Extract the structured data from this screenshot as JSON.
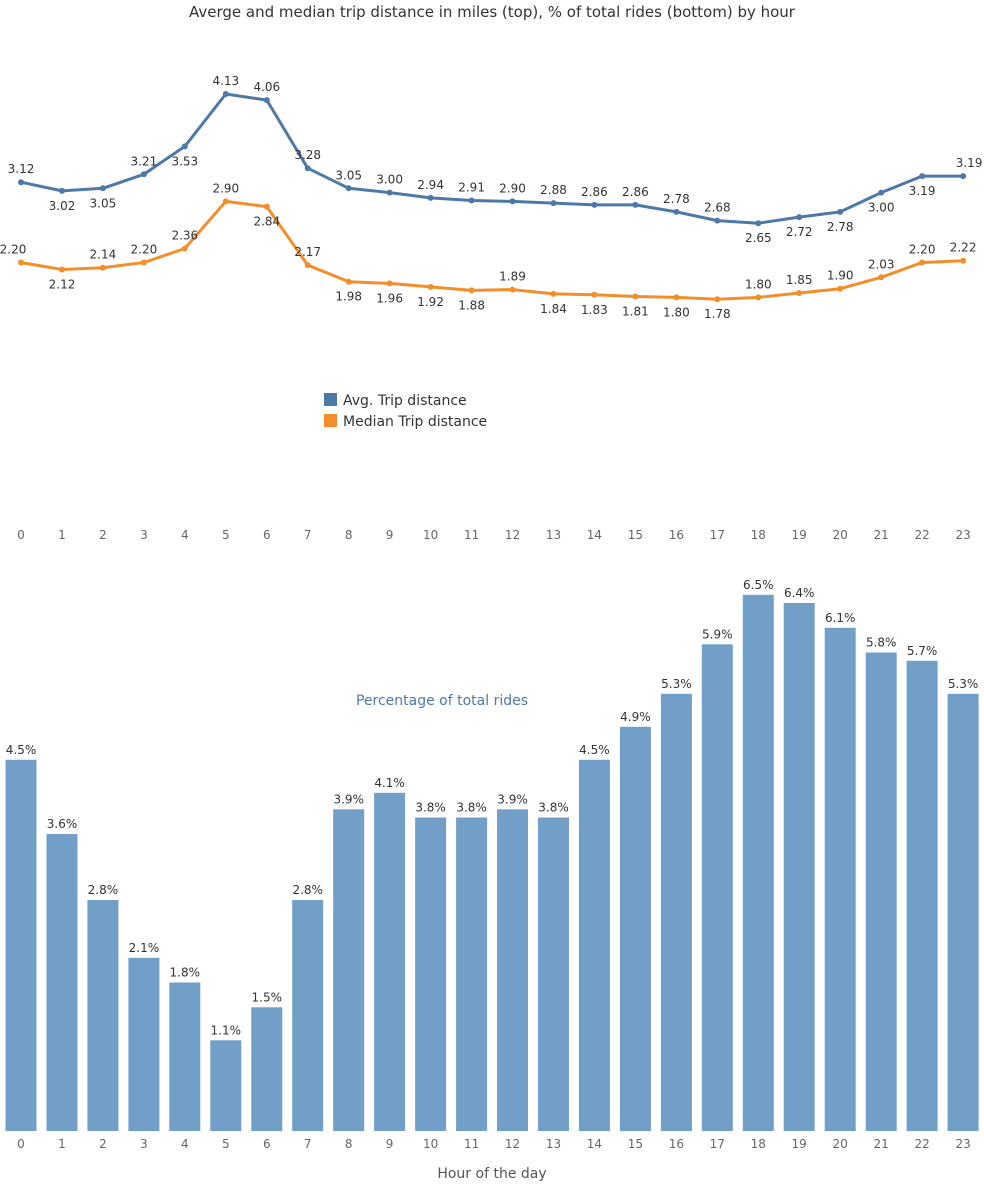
{
  "title": "Averge and median trip distance in miles  (top), % of total rides (bottom) by hour",
  "colors": {
    "avg": "#4e79a7",
    "median": "#f28e2b",
    "bar": "#729fc8"
  },
  "chart_data": [
    {
      "type": "line",
      "x": [
        0,
        1,
        2,
        3,
        4,
        5,
        6,
        7,
        8,
        9,
        10,
        11,
        12,
        13,
        14,
        15,
        16,
        17,
        18,
        19,
        20,
        21,
        22,
        23
      ],
      "series": [
        {
          "name": "Avg. Trip distance",
          "values": [
            3.12,
            3.02,
            3.05,
            3.21,
            3.53,
            4.13,
            4.06,
            3.28,
            3.05,
            3.0,
            2.94,
            2.91,
            2.9,
            2.88,
            2.86,
            2.86,
            2.78,
            2.68,
            2.65,
            2.72,
            2.78,
            3.0,
            3.19,
            3.19
          ],
          "labels": [
            "3.12",
            "3.02",
            "3.05",
            "3.21",
            "3.53",
            "4.13",
            "4.06",
            "3.28",
            "3.05",
            "3.00",
            "2.94",
            "2.91",
            "2.90",
            "2.88",
            "2.86",
            "2.86",
            "2.78",
            "2.68",
            "2.65",
            "2.72",
            "2.78",
            "3.00",
            "3.19",
            "3.19"
          ]
        },
        {
          "name": "Median Trip distance",
          "values": [
            2.2,
            2.12,
            2.14,
            2.2,
            2.36,
            2.9,
            2.84,
            2.17,
            1.98,
            1.96,
            1.92,
            1.88,
            1.89,
            1.84,
            1.83,
            1.81,
            1.8,
            1.78,
            1.8,
            1.85,
            1.9,
            2.03,
            2.2,
            2.22
          ],
          "labels": [
            "2.20",
            "2.12",
            "2.14",
            "2.20",
            "2.36",
            "2.90",
            "2.84",
            "2.17",
            "1.98",
            "1.96",
            "1.92",
            "1.88",
            "1.89",
            "1.84",
            "1.83",
            "1.81",
            "1.80",
            "1.78",
            "1.80",
            "1.85",
            "1.90",
            "2.03",
            "2.20",
            "2.22"
          ]
        }
      ],
      "legend": [
        "Avg. Trip distance",
        "Median Trip distance"
      ],
      "x_tick_labels": [
        "0",
        "1",
        "2",
        "3",
        "4",
        "5",
        "6",
        "7",
        "8",
        "9",
        "10",
        "11",
        "12",
        "13",
        "14",
        "15",
        "16",
        "17",
        "18",
        "19",
        "20",
        "21",
        "22",
        "23"
      ]
    },
    {
      "type": "bar",
      "title": "Percentage of total rides",
      "xlabel": "Hour of the day",
      "categories": [
        "0",
        "1",
        "2",
        "3",
        "4",
        "5",
        "6",
        "7",
        "8",
        "9",
        "10",
        "11",
        "12",
        "13",
        "14",
        "15",
        "16",
        "17",
        "18",
        "19",
        "20",
        "21",
        "22",
        "23"
      ],
      "values": [
        4.5,
        3.6,
        2.8,
        2.1,
        1.8,
        1.1,
        1.5,
        2.8,
        3.9,
        4.1,
        3.8,
        3.8,
        3.9,
        3.8,
        4.5,
        4.9,
        5.3,
        5.9,
        6.5,
        6.4,
        6.1,
        5.8,
        5.7,
        5.3
      ],
      "labels": [
        "4.5%",
        "3.6%",
        "2.8%",
        "2.1%",
        "1.8%",
        "1.1%",
        "1.5%",
        "2.8%",
        "3.9%",
        "4.1%",
        "3.8%",
        "3.8%",
        "3.9%",
        "3.8%",
        "4.5%",
        "4.9%",
        "5.3%",
        "5.9%",
        "6.5%",
        "6.4%",
        "6.1%",
        "5.8%",
        "5.7%",
        "5.3%"
      ]
    }
  ]
}
